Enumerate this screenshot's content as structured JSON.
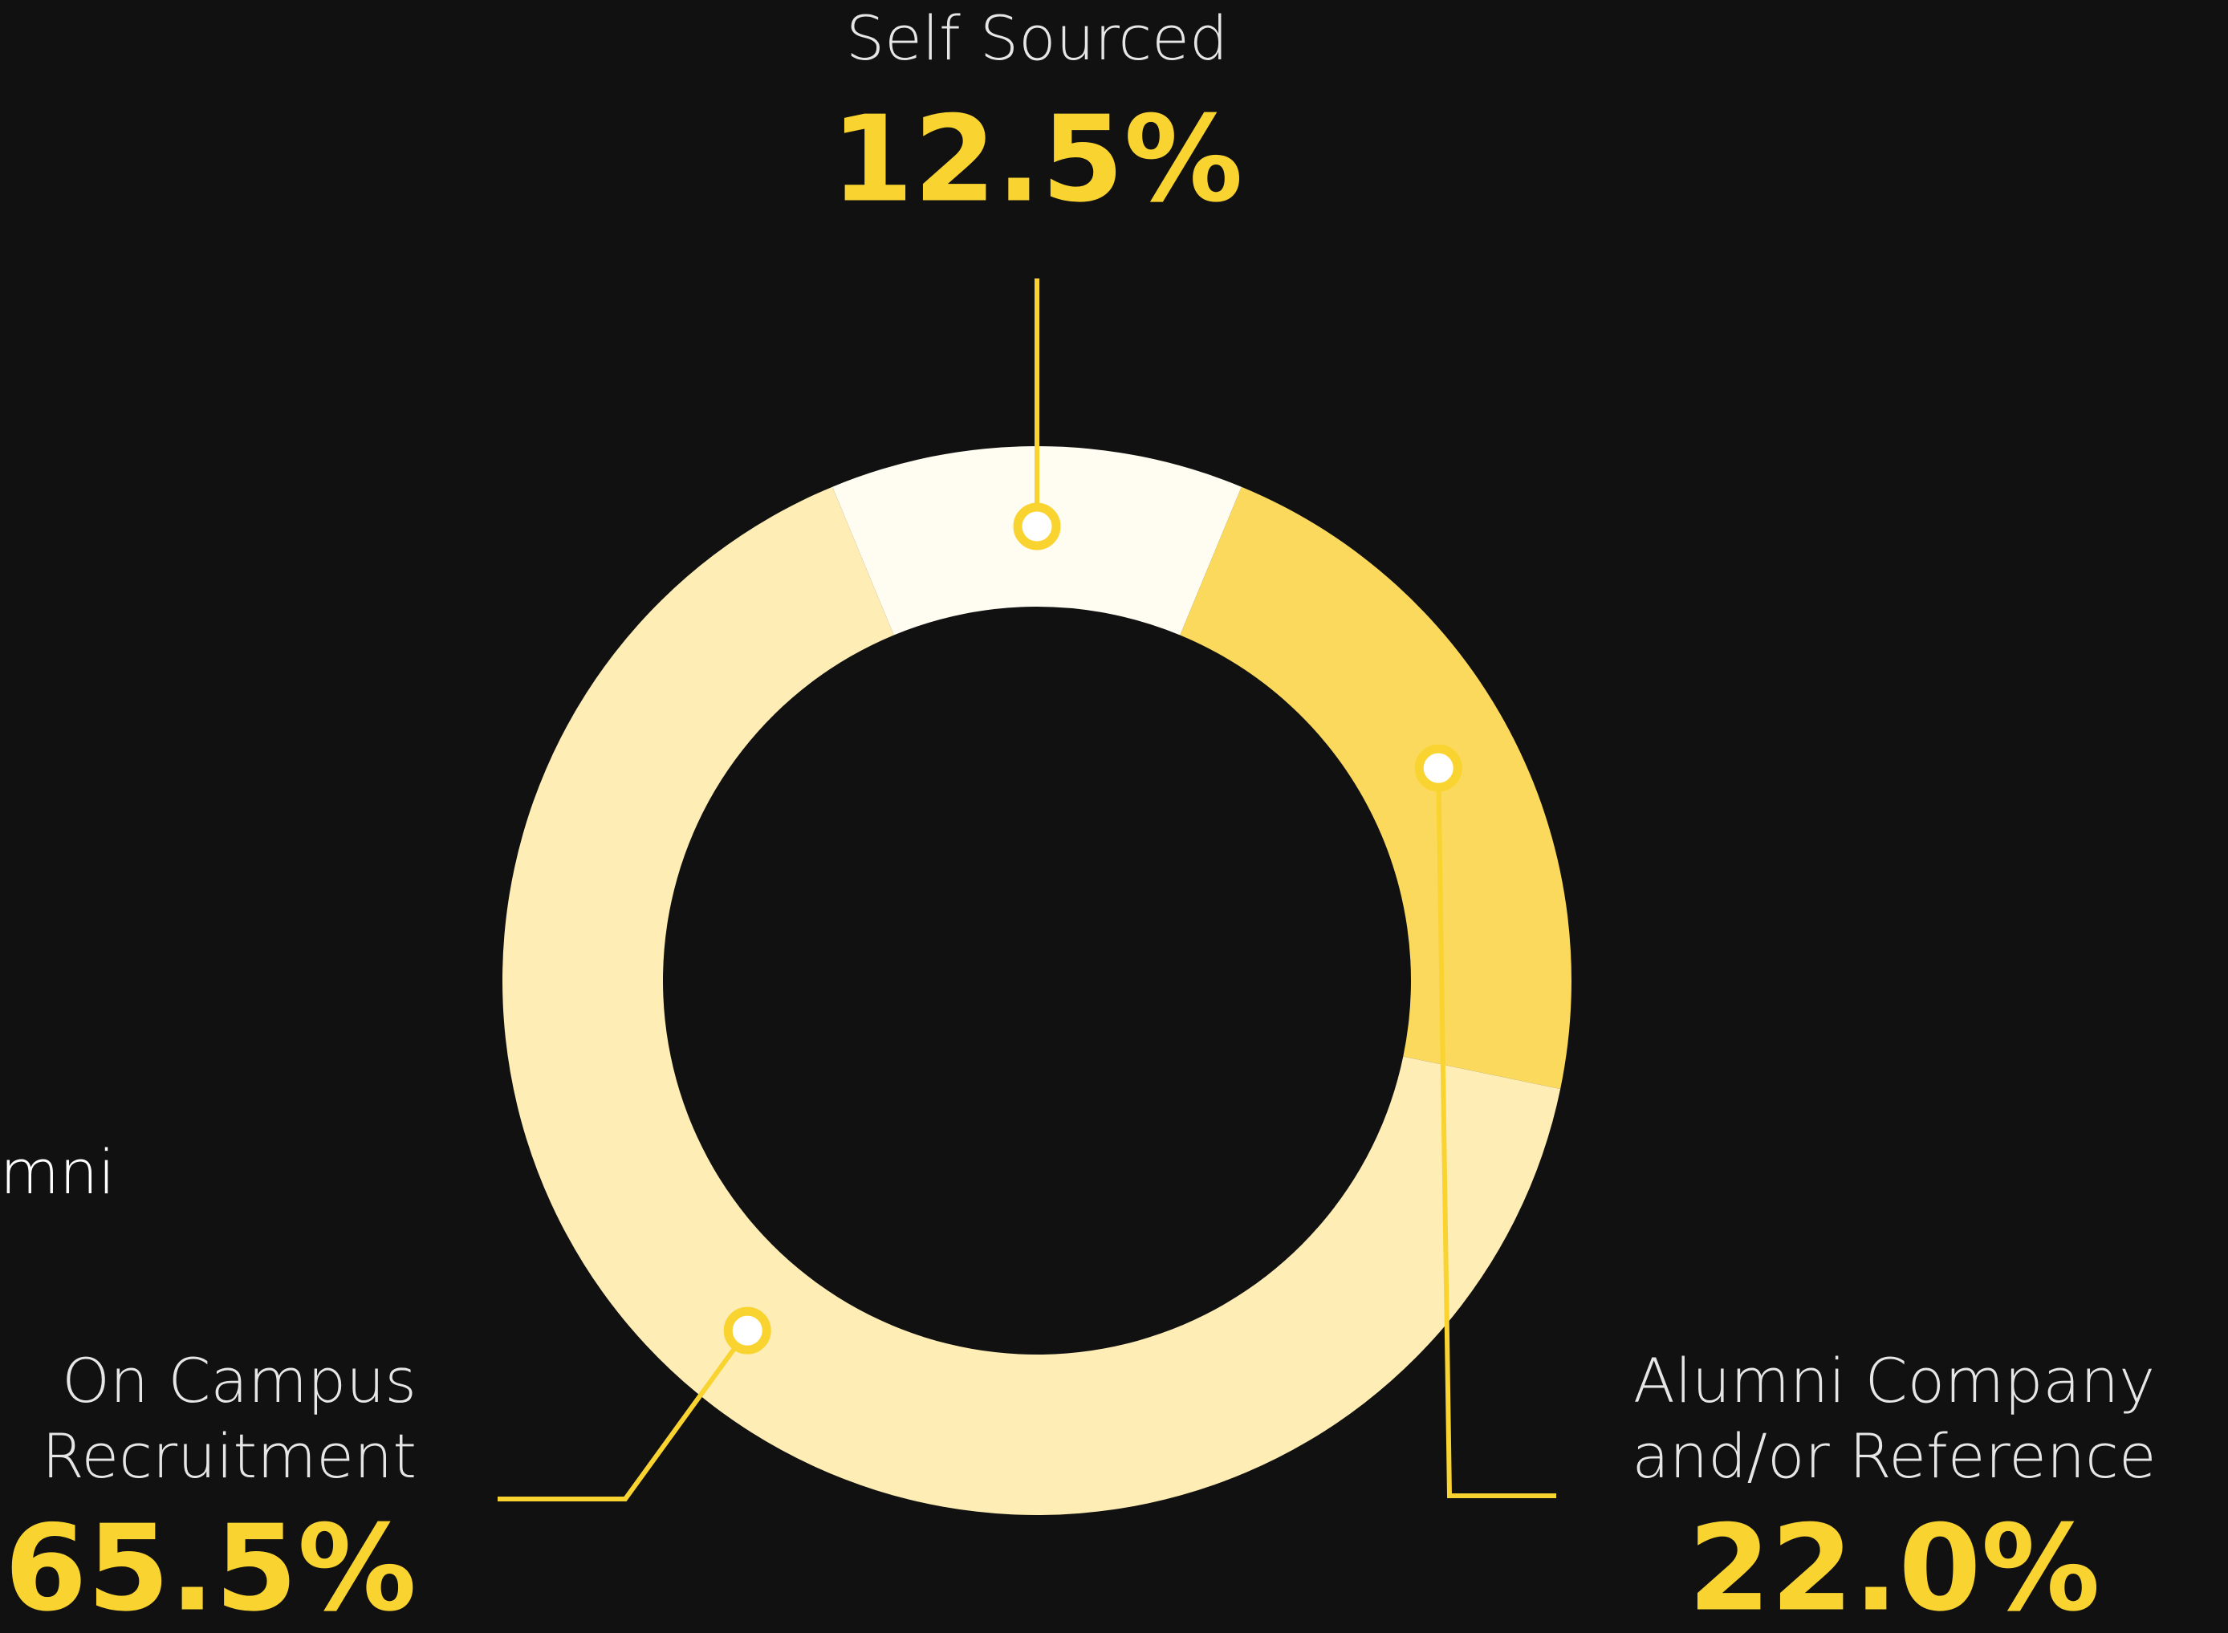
{
  "chart_data": {
    "type": "donut",
    "categories": [
      [
        "Self Sourced"
      ],
      [
        "Alumni Company",
        "and/or Reference"
      ],
      [
        "On Campus",
        "Recruitment"
      ]
    ],
    "values": [
      12.5,
      22.0,
      65.5
    ],
    "value_labels": [
      "12.5%",
      "22.0%",
      "65.5%"
    ],
    "colors": [
      "#fffcf2",
      "#fbd95c",
      "#feedb5"
    ],
    "fragment": "mni"
  }
}
